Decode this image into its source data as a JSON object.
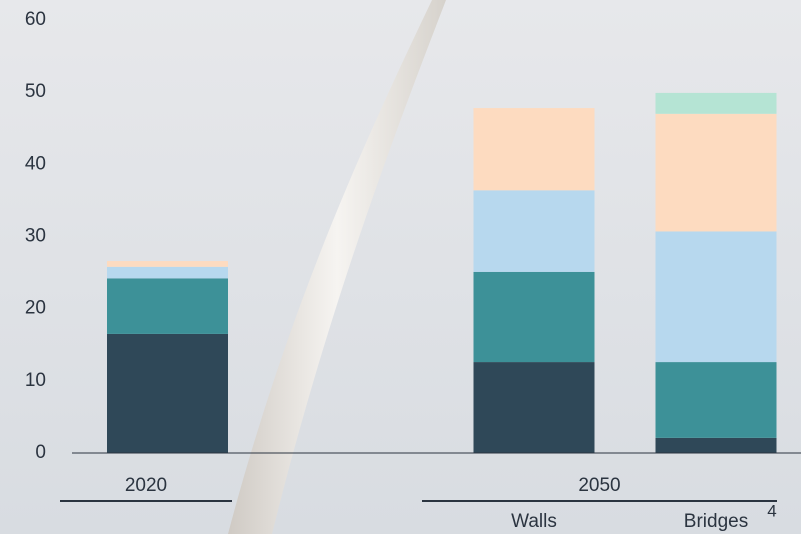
{
  "chart_data": {
    "type": "stacked_bar",
    "categories": [
      null,
      "Walls",
      "Bridges"
    ],
    "group_labels": [
      "2020",
      "2050"
    ],
    "page_number": "4",
    "series": [
      {
        "color": "#2f4858",
        "values": [
          16.5,
          12.6,
          2.1
        ]
      },
      {
        "color": "#3d9198",
        "values": [
          7.7,
          12.5,
          10.5
        ]
      },
      {
        "color": "#b7d8ee",
        "values": [
          1.6,
          11.3,
          18.1
        ]
      },
      {
        "color": "#fddbc0",
        "values": [
          0.8,
          11.4,
          16.3
        ]
      },
      {
        "color": "#b5e4d4",
        "values": [
          null,
          null,
          2.9
        ]
      }
    ],
    "ylim": [
      0,
      60
    ],
    "yticks": [
      0,
      10,
      20,
      30,
      40,
      50,
      60
    ],
    "grid": false
  }
}
